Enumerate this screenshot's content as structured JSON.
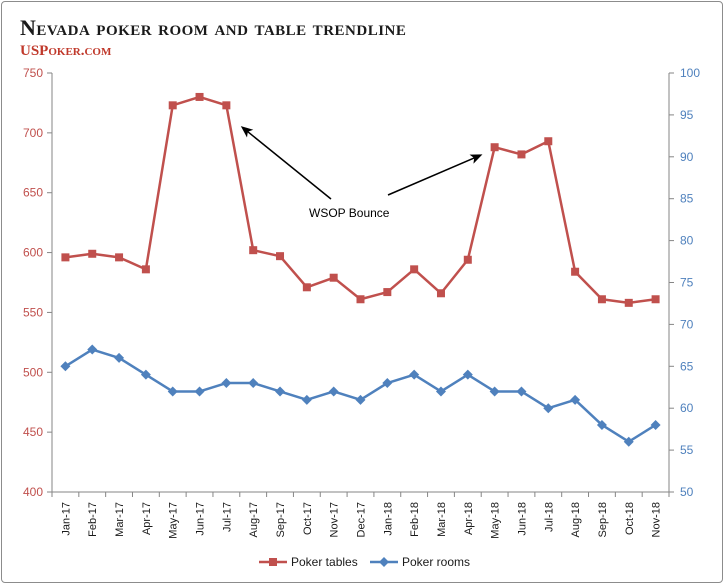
{
  "chart_data": {
    "type": "line",
    "title": "Nevada poker room and table trendline",
    "subtitle": "USPoker.com",
    "categories": [
      "Jan-17",
      "Feb-17",
      "Mar-17",
      "Apr-17",
      "May-17",
      "Jun-17",
      "Jul-17",
      "Aug-17",
      "Sep-17",
      "Oct-17",
      "Nov-17",
      "Dec-17",
      "Jan-18",
      "Feb-18",
      "Mar-18",
      "Apr-18",
      "May-18",
      "Jun-18",
      "Jul-18",
      "Aug-18",
      "Sep-18",
      "Oct-18",
      "Nov-18"
    ],
    "series": [
      {
        "name": "Poker tables",
        "axis": "left",
        "color": "#c0504d",
        "marker": "square",
        "values": [
          596,
          599,
          596,
          586,
          723,
          730,
          723,
          602,
          597,
          571,
          579,
          561,
          567,
          586,
          566,
          594,
          688,
          682,
          693,
          584,
          561,
          558,
          561
        ]
      },
      {
        "name": "Poker rooms",
        "axis": "right",
        "color": "#4f81bd",
        "marker": "diamond",
        "values": [
          65,
          67,
          66,
          64,
          62,
          62,
          63,
          63,
          62,
          61,
          62,
          61,
          63,
          64,
          62,
          64,
          62,
          62,
          60,
          61,
          58,
          56,
          58
        ]
      }
    ],
    "y_left": {
      "min": 400,
      "max": 750,
      "step": 50,
      "color": "#c0504d"
    },
    "y_right": {
      "min": 50,
      "max": 100,
      "step": 5,
      "color": "#4f81bd"
    },
    "grid": false,
    "legend_position": "bottom",
    "annotation": {
      "text": "WSOP Bounce",
      "arrow_targets": [
        "Jul-17",
        "May-18"
      ]
    }
  }
}
